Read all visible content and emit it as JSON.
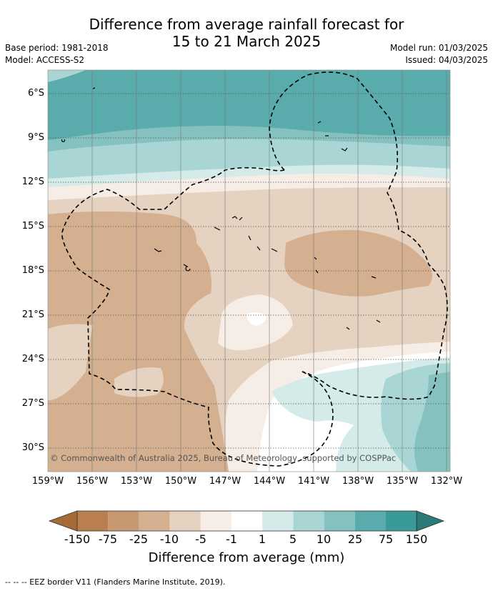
{
  "title_line1": "Difference from average rainfall forecast for",
  "title_line2": "15 to 21 March 2025",
  "base_period": "Base period: 1981-2018",
  "model": "Model: ACCESS-S2",
  "model_run": "Model run: 01/03/2025",
  "issued": "Issued: 04/03/2025",
  "y_ticks": [
    "6°S",
    "9°S",
    "12°S",
    "15°S",
    "18°S",
    "21°S",
    "24°S",
    "27°S",
    "30°S"
  ],
  "x_ticks": [
    "159°W",
    "156°W",
    "153°W",
    "150°W",
    "147°W",
    "144°W",
    "141°W",
    "138°W",
    "135°W",
    "132°W"
  ],
  "copyright": "© Commonwealth of Australia 2025, Bureau of Meteorology, supported by COSPPac",
  "colorbar": {
    "labels": [
      "-150",
      "-75",
      "-25",
      "-10",
      "-5",
      "-1",
      "1",
      "5",
      "10",
      "25",
      "75",
      "150"
    ],
    "colors": [
      "#a66b35",
      "#b97f4e",
      "#c69870",
      "#d4b090",
      "#e5d2c0",
      "#f5ede6",
      "#ffffff",
      "#d4ebea",
      "#a9d6d4",
      "#84c1bf",
      "#5aabab",
      "#399a98",
      "#2a7a78"
    ],
    "title": "Difference from average (mm)"
  },
  "legend": "--  --  -- EEZ border V11 (Flanders Marine Institute, 2019)."
}
